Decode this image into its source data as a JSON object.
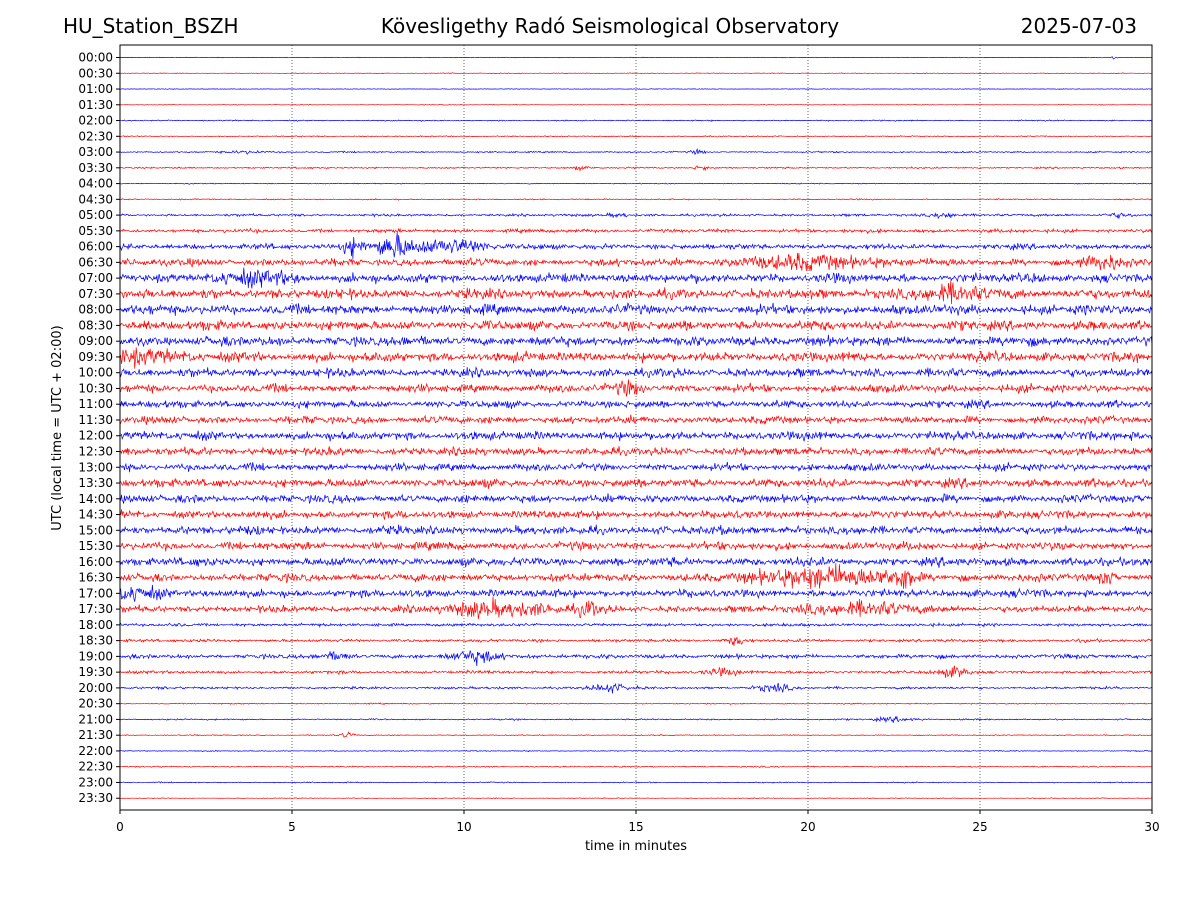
{
  "header": {
    "station": "HU_Station_BSZH",
    "observatory": "Kövesligethy Radó Seismological Observatory",
    "date": "2025-07-03"
  },
  "chart_data": {
    "type": "line",
    "title": "Kövesligethy Radó Seismological Observatory",
    "xlabel": "time in minutes",
    "ylabel": "UTC (local time = UTC + 02:00)",
    "xlim": [
      0,
      30
    ],
    "x_ticks": [
      "0",
      "5",
      "10",
      "15",
      "20",
      "25",
      "30"
    ],
    "grid": "vertical dotted lines at x ticks",
    "colors": {
      "even_rows": "#0000ff",
      "odd_rows": "#ff0000",
      "axes": "#000000"
    },
    "rows": [
      {
        "label": "00:00",
        "amp": 0.5
      },
      {
        "label": "00:30",
        "amp": 0.6
      },
      {
        "label": "01:00",
        "amp": 0.5
      },
      {
        "label": "01:30",
        "amp": 0.5
      },
      {
        "label": "02:00",
        "amp": 1.0
      },
      {
        "label": "02:30",
        "amp": 0.9
      },
      {
        "label": "03:00",
        "amp": 1.2
      },
      {
        "label": "03:30",
        "amp": 1.3
      },
      {
        "label": "04:00",
        "amp": 0.8
      },
      {
        "label": "04:30",
        "amp": 1.0
      },
      {
        "label": "05:00",
        "amp": 2.0
      },
      {
        "label": "05:30",
        "amp": 3.0
      },
      {
        "label": "06:00",
        "amp": 4.5
      },
      {
        "label": "06:30",
        "amp": 6.0
      },
      {
        "label": "07:00",
        "amp": 7.5
      },
      {
        "label": "07:30",
        "amp": 8.0
      },
      {
        "label": "08:00",
        "amp": 8.0
      },
      {
        "label": "08:30",
        "amp": 8.0
      },
      {
        "label": "09:00",
        "amp": 8.0
      },
      {
        "label": "09:30",
        "amp": 8.0
      },
      {
        "label": "10:00",
        "amp": 7.0
      },
      {
        "label": "10:30",
        "amp": 6.5
      },
      {
        "label": "11:00",
        "amp": 6.0
      },
      {
        "label": "11:30",
        "amp": 6.0
      },
      {
        "label": "12:00",
        "amp": 7.0
      },
      {
        "label": "12:30",
        "amp": 6.5
      },
      {
        "label": "13:00",
        "amp": 6.0
      },
      {
        "label": "13:30",
        "amp": 7.0
      },
      {
        "label": "14:00",
        "amp": 6.5
      },
      {
        "label": "14:30",
        "amp": 6.5
      },
      {
        "label": "15:00",
        "amp": 7.0
      },
      {
        "label": "15:30",
        "amp": 6.5
      },
      {
        "label": "16:00",
        "amp": 7.0
      },
      {
        "label": "16:30",
        "amp": 6.5
      },
      {
        "label": "17:00",
        "amp": 6.5
      },
      {
        "label": "17:30",
        "amp": 5.5
      },
      {
        "label": "18:00",
        "amp": 2.5
      },
      {
        "label": "18:30",
        "amp": 2.5
      },
      {
        "label": "19:00",
        "amp": 3.5
      },
      {
        "label": "19:30",
        "amp": 2.5
      },
      {
        "label": "20:00",
        "amp": 2.0
      },
      {
        "label": "20:30",
        "amp": 1.0
      },
      {
        "label": "21:00",
        "amp": 1.2
      },
      {
        "label": "21:30",
        "amp": 0.8
      },
      {
        "label": "22:00",
        "amp": 0.8
      },
      {
        "label": "22:30",
        "amp": 1.0
      },
      {
        "label": "23:00",
        "amp": 0.9
      },
      {
        "label": "23:30",
        "amp": 0.6
      }
    ],
    "bursts": [
      {
        "row": "00:00",
        "x": 28.9,
        "w": 0.1,
        "a": 2
      },
      {
        "row": "03:00",
        "x": 3.7,
        "w": 0.5,
        "a": 2
      },
      {
        "row": "03:00",
        "x": 16.8,
        "w": 0.2,
        "a": 3
      },
      {
        "row": "03:30",
        "x": 16.9,
        "w": 0.2,
        "a": 4
      },
      {
        "row": "03:30",
        "x": 13.4,
        "w": 0.3,
        "a": 2
      },
      {
        "row": "05:00",
        "x": 14.5,
        "w": 0.3,
        "a": 3
      },
      {
        "row": "05:00",
        "x": 24.0,
        "w": 0.4,
        "a": 4
      },
      {
        "row": "05:00",
        "x": 29.0,
        "w": 0.4,
        "a": 3
      },
      {
        "row": "06:00",
        "x": 6.8,
        "w": 0.3,
        "a": 13
      },
      {
        "row": "06:00",
        "x": 7.9,
        "w": 0.5,
        "a": 14
      },
      {
        "row": "06:00",
        "x": 9.5,
        "w": 1.2,
        "a": 9
      },
      {
        "row": "06:30",
        "x": 20.0,
        "w": 2.0,
        "a": 8
      },
      {
        "row": "06:30",
        "x": 28.7,
        "w": 0.5,
        "a": 9
      },
      {
        "row": "07:00",
        "x": 4.0,
        "w": 1.0,
        "a": 8
      },
      {
        "row": "07:30",
        "x": 24.2,
        "w": 1.2,
        "a": 8
      },
      {
        "row": "09:30",
        "x": 0.5,
        "w": 1.0,
        "a": 9
      },
      {
        "row": "10:30",
        "x": 14.8,
        "w": 0.4,
        "a": 8
      },
      {
        "row": "16:30",
        "x": 20.5,
        "w": 1.8,
        "a": 14
      },
      {
        "row": "16:30",
        "x": 22.8,
        "w": 0.3,
        "a": 12
      },
      {
        "row": "16:30",
        "x": 28.7,
        "w": 0.2,
        "a": 8
      },
      {
        "row": "17:00",
        "x": 0.4,
        "w": 0.8,
        "a": 9
      },
      {
        "row": "17:30",
        "x": 11.0,
        "w": 1.5,
        "a": 10
      },
      {
        "row": "17:30",
        "x": 13.6,
        "w": 0.3,
        "a": 9
      },
      {
        "row": "17:30",
        "x": 21.5,
        "w": 1.5,
        "a": 8
      },
      {
        "row": "18:30",
        "x": 17.9,
        "w": 0.3,
        "a": 6
      },
      {
        "row": "19:00",
        "x": 10.4,
        "w": 0.7,
        "a": 8
      },
      {
        "row": "19:00",
        "x": 6.3,
        "w": 0.4,
        "a": 5
      },
      {
        "row": "19:30",
        "x": 17.5,
        "w": 0.5,
        "a": 5
      },
      {
        "row": "19:30",
        "x": 24.2,
        "w": 0.5,
        "a": 6
      },
      {
        "row": "20:00",
        "x": 14.2,
        "w": 0.5,
        "a": 6
      },
      {
        "row": "20:00",
        "x": 19.0,
        "w": 0.5,
        "a": 5
      },
      {
        "row": "21:00",
        "x": 22.5,
        "w": 0.6,
        "a": 3
      },
      {
        "row": "21:30",
        "x": 6.6,
        "w": 0.2,
        "a": 4
      }
    ]
  }
}
